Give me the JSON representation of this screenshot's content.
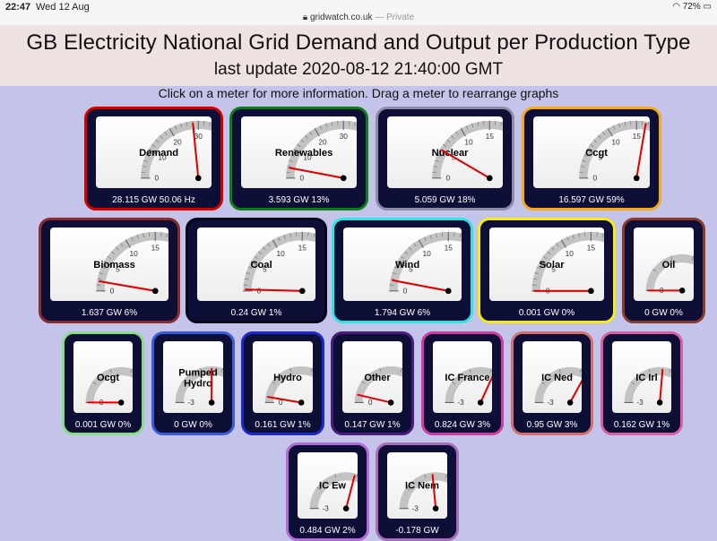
{
  "status_bar": {
    "time": "22:47",
    "date": "Wed 12 Aug",
    "url": "gridwatch.co.uk",
    "privacy": " — Private",
    "wifi_icon": "wifi-icon",
    "battery": "72%",
    "battery_icon": "battery-icon"
  },
  "header": {
    "title": "GB Electricity National Grid Demand and Output per Production Type",
    "subtitle": "last update 2020-08-12 21:40:00 GMT"
  },
  "instructions": "Click on a meter for more information. Drag a meter to rearrange graphs",
  "meters": [
    {
      "id": "demand",
      "label": "Demand",
      "reading": "28.115 GW 50.06 Hz",
      "value": 28.115,
      "max": 60,
      "ticks": [
        "0",
        "10",
        "20",
        "30",
        "40",
        "50",
        "60"
      ],
      "red_from": 40,
      "border": "#d50000"
    },
    {
      "id": "renewables",
      "label": "Renewables",
      "reading": "3.593 GW 13%",
      "value": 3.593,
      "max": 60,
      "ticks": [
        "0",
        "10",
        "20",
        "30",
        "40",
        "50",
        "60"
      ],
      "red_from": null,
      "border": "#117a1a"
    },
    {
      "id": "nuclear",
      "label": "Nuclear",
      "reading": "5.059 GW 18%",
      "value": 5.059,
      "max": 30,
      "ticks": [
        "0",
        "5",
        "10",
        "15",
        "20",
        "25",
        "30"
      ],
      "red_from": null,
      "border": "#8c8ca6"
    },
    {
      "id": "ccgt",
      "label": "Ccgt",
      "reading": "16.597 GW 59%",
      "value": 16.597,
      "max": 30,
      "ticks": [
        "0",
        "5",
        "10",
        "15",
        "20",
        "25",
        "30"
      ],
      "red_from": null,
      "border": "#f2a91e"
    },
    {
      "id": "biomass",
      "label": "Biomass",
      "reading": "1.637 GW 6%",
      "value": 1.637,
      "max": 30,
      "ticks": [
        "0",
        "5",
        "10",
        "15",
        "20",
        "25",
        "30"
      ],
      "red_from": null,
      "border": "#8b2c2c"
    },
    {
      "id": "coal",
      "label": "Coal",
      "reading": "0.24 GW 1%",
      "value": 0.24,
      "max": 30,
      "ticks": [
        "0",
        "5",
        "10",
        "15",
        "20",
        "25",
        "30"
      ],
      "red_from": null,
      "border": "#05061a"
    },
    {
      "id": "wind",
      "label": "Wind",
      "reading": "1.794 GW 6%",
      "value": 1.794,
      "max": 30,
      "ticks": [
        "0",
        "5",
        "10",
        "15",
        "20",
        "25",
        "30"
      ],
      "red_from": null,
      "border": "#2ce6e6"
    },
    {
      "id": "solar",
      "label": "Solar",
      "reading": "0.001 GW 0%",
      "value": 0.001,
      "max": 30,
      "ticks": [
        "0",
        "5",
        "10",
        "15",
        "20",
        "25",
        "30"
      ],
      "red_from": null,
      "border": "#f6ec12"
    },
    {
      "id": "oil",
      "label": "Oil",
      "reading": "0 GW 0%",
      "value": 0,
      "max": 5,
      "ticks": [
        "0",
        "5"
      ],
      "red_from": null,
      "border": "#8a3a2a"
    },
    {
      "id": "ocgt",
      "label": "Ocgt",
      "reading": "0.001 GW 0%",
      "value": 0.001,
      "max": 5,
      "ticks": [
        "0",
        "5"
      ],
      "red_from": null,
      "border": "#8bdc86"
    },
    {
      "id": "pumped",
      "label": "Pumped\nHydro",
      "reading": "0 GW 0%",
      "value": 0,
      "max": 3,
      "ticks": [
        "-3",
        "3"
      ],
      "red_from": null,
      "border": "#3f5ad6"
    },
    {
      "id": "hydro",
      "label": "Hydro",
      "reading": "0.161 GW 1%",
      "value": 0.161,
      "max": 3,
      "ticks": [
        "0",
        "3"
      ],
      "red_from": null,
      "border": "#1d28c8"
    },
    {
      "id": "other",
      "label": "Other",
      "reading": "0.147 GW 1%",
      "value": 0.147,
      "max": 2,
      "ticks": [
        "0",
        "2"
      ],
      "red_from": null,
      "border": "#4a1c7a"
    },
    {
      "id": "icfrance",
      "label": "IC France",
      "reading": "0.824 GW 3%",
      "value": 0.824,
      "max": 3,
      "ticks": [
        "-3",
        "3"
      ],
      "red_from": null,
      "border": "#cf3ca3"
    },
    {
      "id": "icned",
      "label": "IC Ned",
      "reading": "0.95 GW 3%",
      "value": 0.95,
      "max": 3,
      "ticks": [
        "-3",
        "3"
      ],
      "red_from": null,
      "border": "#d67070"
    },
    {
      "id": "icirl",
      "label": "IC Irl",
      "reading": "0.162 GW 1%",
      "value": 0.162,
      "max": 3,
      "ticks": [
        "-3",
        "3"
      ],
      "red_from": null,
      "border": "#d95ea4"
    },
    {
      "id": "icew",
      "label": "IC Ew",
      "reading": "0.484 GW 2%",
      "value": 0.484,
      "max": 3,
      "ticks": [
        "-3",
        "3"
      ],
      "red_from": null,
      "border": "#b36bd6"
    },
    {
      "id": "icnem",
      "label": "IC Nem",
      "reading": "-0.178 GW",
      "value": -0.178,
      "max": 3,
      "ticks": [
        "-3",
        "3"
      ],
      "red_from": null,
      "border": "#a66dba"
    }
  ]
}
